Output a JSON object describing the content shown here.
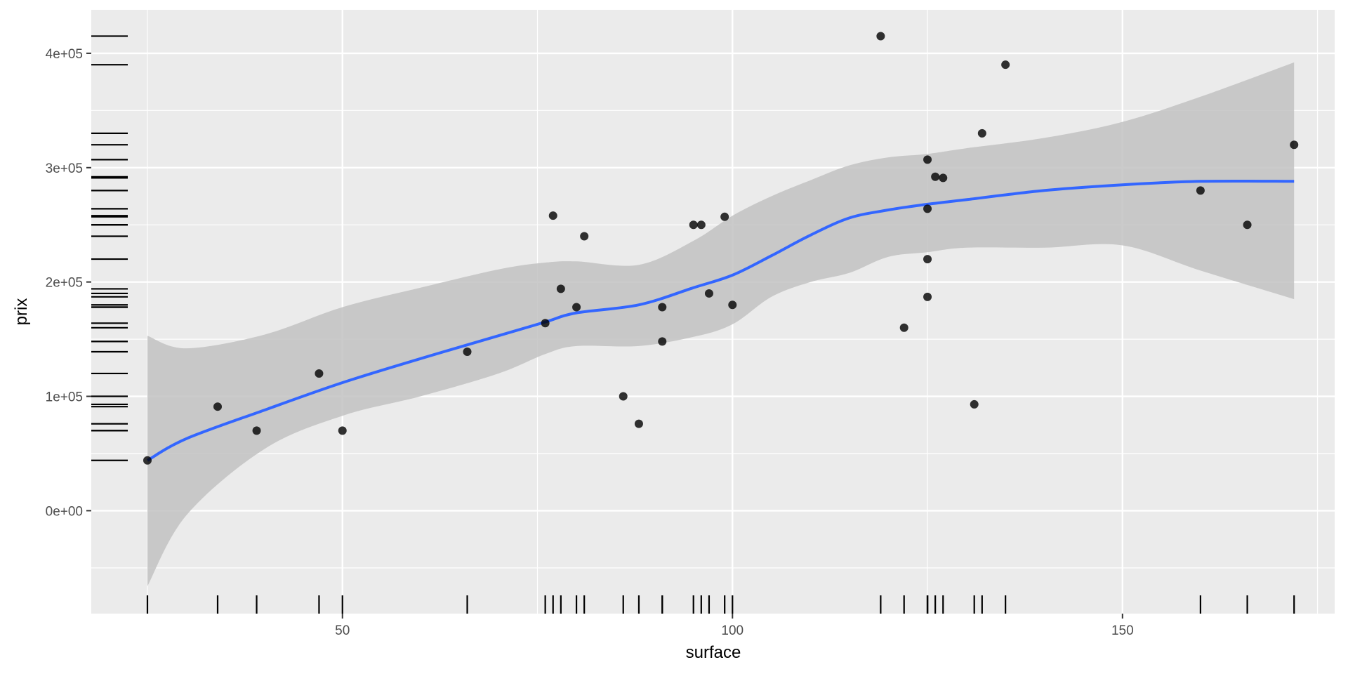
{
  "chart_data": {
    "type": "scatter",
    "title": "",
    "xlabel": "surface",
    "ylabel": "prix",
    "xlim": [
      17.8,
      177.2
    ],
    "ylim": [
      -90000,
      438000
    ],
    "x_ticks": [
      50,
      100,
      150
    ],
    "x_tick_labels": [
      "50",
      "100",
      "150"
    ],
    "y_ticks": [
      0,
      100000,
      200000,
      300000,
      400000
    ],
    "y_tick_labels": [
      "0e+00",
      "1e+05",
      "2e+05",
      "3e+05",
      "4e+05"
    ],
    "grid": true,
    "legend": "none",
    "rug": "both",
    "colors": {
      "panel": "#ebebeb",
      "grid": "#ffffff",
      "points": "#000000",
      "smooth_line": "#3366ff",
      "ribbon": "#c2c2c2",
      "rug": "#000000",
      "axis_text": "#4d4d4d"
    },
    "points": [
      {
        "x": 25,
        "y": 44000
      },
      {
        "x": 34,
        "y": 91000
      },
      {
        "x": 39,
        "y": 70000
      },
      {
        "x": 47,
        "y": 120000
      },
      {
        "x": 50,
        "y": 70000
      },
      {
        "x": 66,
        "y": 139000
      },
      {
        "x": 76,
        "y": 164000
      },
      {
        "x": 77,
        "y": 258000
      },
      {
        "x": 78,
        "y": 194000
      },
      {
        "x": 80,
        "y": 178000
      },
      {
        "x": 81,
        "y": 240000
      },
      {
        "x": 86,
        "y": 100000
      },
      {
        "x": 88,
        "y": 76000
      },
      {
        "x": 91,
        "y": 148000
      },
      {
        "x": 91,
        "y": 178000
      },
      {
        "x": 95,
        "y": 250000
      },
      {
        "x": 96,
        "y": 250000
      },
      {
        "x": 97,
        "y": 190000
      },
      {
        "x": 99,
        "y": 257000
      },
      {
        "x": 100,
        "y": 180000
      },
      {
        "x": 119,
        "y": 415000
      },
      {
        "x": 122,
        "y": 160000
      },
      {
        "x": 125,
        "y": 187000
      },
      {
        "x": 125,
        "y": 220000
      },
      {
        "x": 125,
        "y": 264000
      },
      {
        "x": 125,
        "y": 307000
      },
      {
        "x": 126,
        "y": 292000
      },
      {
        "x": 127,
        "y": 291000
      },
      {
        "x": 131,
        "y": 93000
      },
      {
        "x": 132,
        "y": 330000
      },
      {
        "x": 135,
        "y": 390000
      },
      {
        "x": 160,
        "y": 280000
      },
      {
        "x": 166,
        "y": 250000
      },
      {
        "x": 172,
        "y": 320000
      }
    ],
    "smooth": {
      "x": [
        25,
        30,
        40,
        50,
        60,
        70,
        76,
        80,
        88,
        95,
        100,
        105,
        110,
        115,
        120,
        125,
        130,
        140,
        150,
        160,
        172
      ],
      "y": [
        44000,
        63000,
        88000,
        112000,
        133000,
        153000,
        165000,
        173000,
        180000,
        195000,
        206000,
        223000,
        241000,
        256000,
        263000,
        268000,
        272000,
        280000,
        285000,
        288000,
        288000
      ],
      "lower": [
        -66000,
        -4000,
        54000,
        83000,
        100000,
        120000,
        137000,
        144000,
        144000,
        152000,
        163000,
        187000,
        200000,
        208000,
        222000,
        226000,
        230000,
        230000,
        232000,
        210000,
        185000
      ],
      "upper": [
        153000,
        142000,
        154000,
        178000,
        195000,
        211000,
        217000,
        218000,
        215000,
        236000,
        258000,
        275000,
        289000,
        302000,
        309000,
        312000,
        317000,
        326000,
        340000,
        362000,
        392000
      ]
    }
  }
}
